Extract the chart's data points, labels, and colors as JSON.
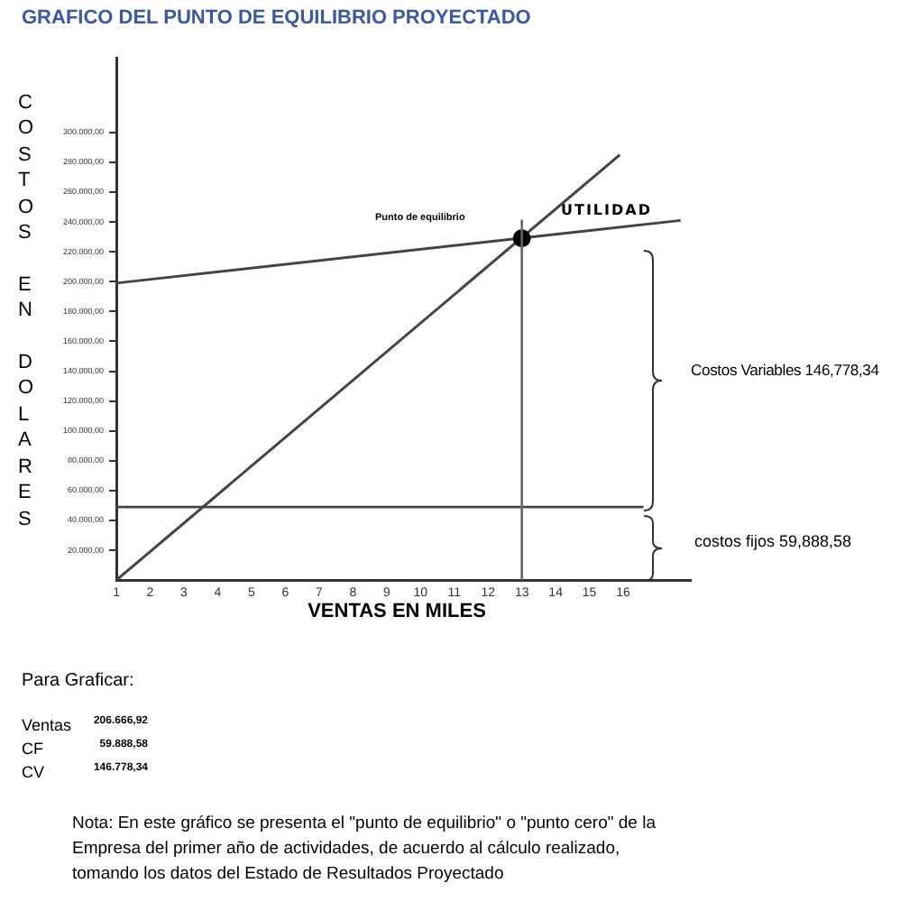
{
  "chart_data": {
    "type": "line",
    "title": "GRAFICO DEL PUNTO DE EQUILIBRIO PROYECTADO",
    "xlabel": "VENTAS EN MILES",
    "ylabel": "COSTOS EN DOLARES",
    "xlim": [
      1,
      18
    ],
    "xticks": [
      1,
      2,
      3,
      4,
      5,
      6,
      7,
      8,
      9,
      10,
      11,
      12,
      13,
      14,
      15,
      16
    ],
    "ylim": [
      0,
      350000
    ],
    "yticks": [
      {
        "value": 20000,
        "label": "20.000,00"
      },
      {
        "value": 40000,
        "label": "40.000,00"
      },
      {
        "value": 60000,
        "label": "60.000,00"
      },
      {
        "value": 80000,
        "label": "80.000,00"
      },
      {
        "value": 100000,
        "label": "100.000,00"
      },
      {
        "value": 120000,
        "label": "120.000,00"
      },
      {
        "value": 140000,
        "label": "140.000,00"
      },
      {
        "value": 160000,
        "label": "160.000,00"
      },
      {
        "value": 180000,
        "label": "180.000,00"
      },
      {
        "value": 200000,
        "label": "200.000,00"
      },
      {
        "value": 220000,
        "label": "220.000,00"
      },
      {
        "value": 240000,
        "label": "240.000,00"
      },
      {
        "value": 260000,
        "label": "260.000,00"
      },
      {
        "value": 280000,
        "label": "280.000,00"
      },
      {
        "value": 300000,
        "label": "300.000,00"
      }
    ],
    "series": [
      {
        "color": "#444444",
        "x": [
          1,
          15.9
        ],
        "values": [
          0,
          285000
        ]
      },
      {
        "color": "#444444",
        "x": [
          1,
          17.7
        ],
        "values": [
          199000,
          241000
        ]
      },
      {
        "type": "scatter",
        "color": "#000000",
        "x": [
          13
        ],
        "values": [
          229000
        ]
      }
    ],
    "ref_lines": [
      {
        "axis": "y",
        "value": 49000,
        "color": "#444444"
      },
      {
        "axis": "x",
        "value": 13,
        "color": "#666666"
      }
    ],
    "annotations": [
      "Punto de equilibrio",
      "UTILIDAD",
      "Costos Variables 146,778,34",
      "costos fijos 59,888,58",
      "Para Graficar:",
      "Ventas",
      "206.666,92",
      "CF",
      "59.888,58",
      "CV",
      "146.778,34",
      "Nota: En este gráfico se presenta el \"punto de equilibrio\" o \"punto cero\" de la Empresa del primer año de actividades, de acuerdo al cálculo realizado, tomando los datos del Estado de Resultados Proyectado"
    ]
  }
}
